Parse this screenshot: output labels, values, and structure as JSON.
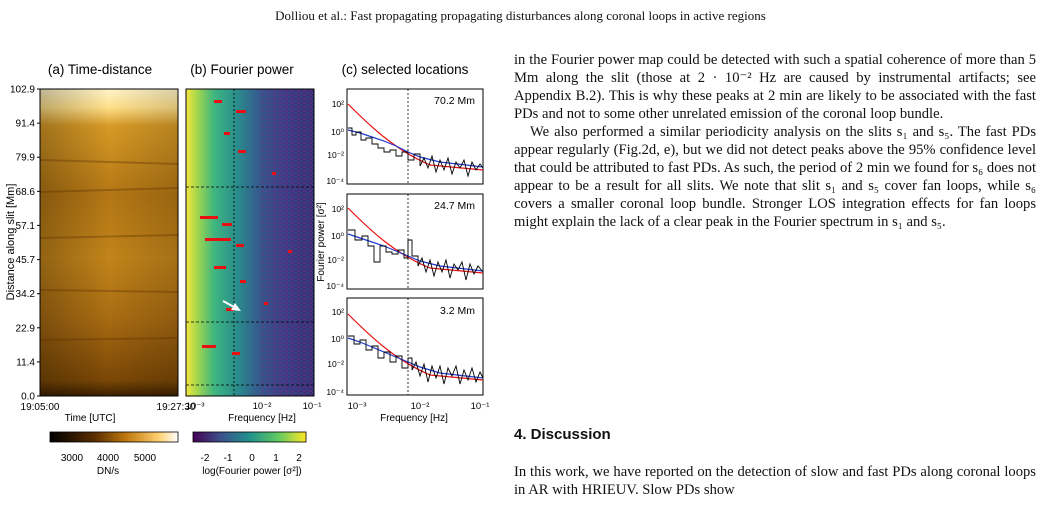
{
  "header": "Dolliou et al.: Fast propagating propagating disturbances along coronal loops in active regions",
  "figure": {
    "panel_a_title": "(a) Time-distance",
    "panel_b_title": "(b) Fourier power",
    "panel_c_title": "(c) selected locations",
    "y_axis_label": "Distance along slit [Mm]",
    "y_ticks": [
      "102.9",
      "91.4",
      "79.9",
      "68.6",
      "57.1",
      "45.7",
      "34.2",
      "22.9",
      "11.4",
      "0.0"
    ],
    "time_start": "19:05:00",
    "time_end": "19:27:30",
    "time_label": "Time [UTC]",
    "freq_ticks": [
      "10⁻³",
      "10⁻²",
      "10⁻¹"
    ],
    "freq_label": "Frequency [Hz]",
    "power_axis_label": "Fourier power [σ²]",
    "power_ticks": [
      "10²",
      "10⁰",
      "10⁻²",
      "10⁻⁴"
    ],
    "locations": [
      "70.2 Mm",
      "24.7 Mm",
      "3.2 Mm"
    ],
    "colorbar_a_ticks": [
      "3000",
      "4000",
      "5000"
    ],
    "colorbar_a_label": "DN/s",
    "colorbar_b_ticks": [
      "-2",
      "-1",
      "0",
      "1",
      "2"
    ],
    "colorbar_b_label": "log(Fourier power [σ²])"
  },
  "body": {
    "para1": "in the Fourier power map could be detected with such a spatial coherence of more than 5 Mm along the slit (those at 2 · 10⁻² Hz are caused by instrumental artifacts; see Appendix B.2). This is why these peaks at 2 min are likely to be associated with the fast PDs and not to some other unrelated emission of the coronal loop bundle.",
    "para2": "We also performed a similar periodicity analysis on the slits s₁ and s₅. The fast PDs appear regularly (Fig.2d, e), but we did not detect peaks above the 95% confidence level that could be attributed to fast PDs. As such, the period of 2 min we found for s₆ does not appear to be a result for all slits. We note that slit s₁ and s₅ cover fan loops, while s₆ covers a smaller coronal loop bundle. Stronger LOS integration effects for fan loops might explain the lack of a clear peak in the Fourier spectrum in s₁ and s₅.",
    "section_title": "4. Discussion",
    "para3": "In this work, we have reported on the detection of slow and fast PDs along coronal loops in AR with HRIEUV. Slow PDs show"
  }
}
